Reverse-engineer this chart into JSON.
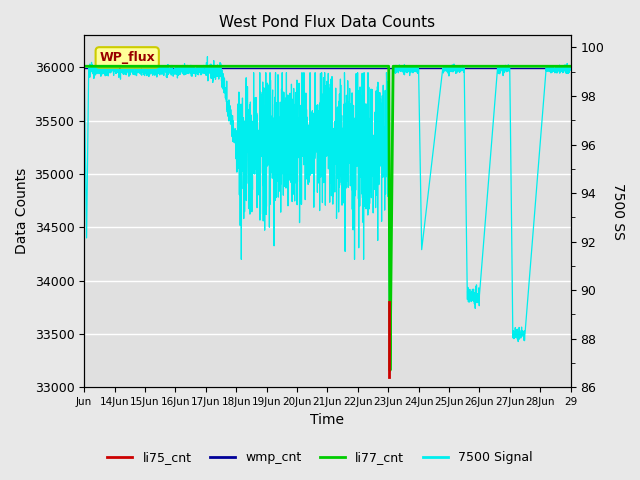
{
  "title": "West Pond Flux Data Counts",
  "xlabel": "Time",
  "ylabel_left": "Data Counts",
  "ylabel_right": "7500 SS",
  "ylim_left": [
    33000,
    36300
  ],
  "ylim_right": [
    86,
    100.5
  ],
  "fig_bg": "#e8e8e8",
  "plot_bg": "#e0e0e0",
  "annotation_text": "WP_flux",
  "annotation_bg": "#ffff99",
  "annotation_border": "#cccc00",
  "annotation_text_color": "#990000",
  "x_tick_labels": [
    "Jun",
    "14Jun",
    "15Jun",
    "16Jun",
    "17Jun",
    "18Jun",
    "19Jun",
    "20Jun",
    "21Jun",
    "22Jun",
    "23Jun",
    "24Jun",
    "25Jun",
    "26Jun",
    "27Jun",
    "28Jun",
    "29"
  ],
  "right_major_ticks": [
    86,
    88,
    90,
    92,
    94,
    96,
    98,
    100
  ],
  "left_major_ticks": [
    33000,
    33500,
    34000,
    34500,
    35000,
    35500,
    36000
  ],
  "cyan_color": "#00eeee",
  "green_color": "#00cc00",
  "red_color": "#cc0000",
  "blue_color": "#000099"
}
